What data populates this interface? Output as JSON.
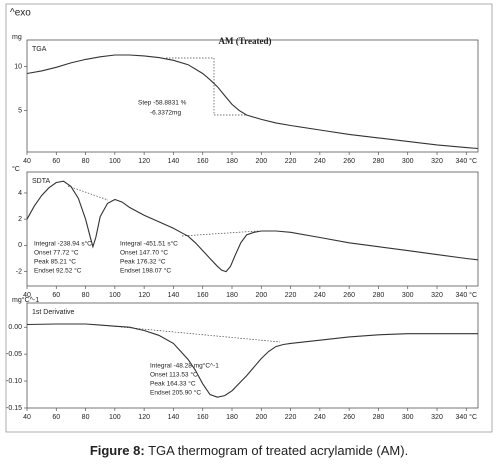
{
  "exo_label": "^exo",
  "caption": {
    "label": "Figure 8:",
    "text": " TGA thermogram of treated acrylamide (AM)."
  },
  "chart_data": [
    {
      "type": "line",
      "title": "AM (Treated)",
      "label": "TGA",
      "ylabel": "mg",
      "color": "#333333",
      "x": [
        40,
        50,
        60,
        70,
        80,
        90,
        100,
        110,
        120,
        130,
        140,
        150,
        160,
        165,
        170,
        175,
        180,
        185,
        190,
        200,
        210,
        220,
        240,
        260,
        280,
        300,
        320,
        340,
        348
      ],
      "values": [
        9.2,
        9.5,
        9.9,
        10.4,
        10.8,
        11.1,
        11.3,
        11.3,
        11.2,
        11.0,
        10.7,
        10.2,
        9.2,
        8.5,
        7.7,
        6.7,
        5.7,
        5.0,
        4.5,
        4.0,
        3.6,
        3.3,
        2.8,
        2.3,
        1.9,
        1.5,
        1.1,
        0.8,
        0.7
      ],
      "xlim": [
        40,
        348
      ],
      "ylim": [
        0.3,
        13
      ],
      "xticks": [
        40,
        60,
        80,
        100,
        120,
        140,
        160,
        180,
        200,
        220,
        240,
        260,
        280,
        300,
        320,
        {
          "value": 340,
          "label": "340 °C"
        }
      ],
      "yticks": [
        5,
        10
      ],
      "annotations": [
        "Step -58.8831 %",
        "-6.3372mg"
      ]
    },
    {
      "type": "line",
      "label": "SDTA",
      "ylabel": "°C",
      "color": "#333333",
      "x": [
        40,
        45,
        50,
        55,
        60,
        65,
        70,
        75,
        80,
        83,
        85,
        87,
        90,
        95,
        100,
        105,
        110,
        120,
        130,
        140,
        145,
        150,
        155,
        160,
        165,
        170,
        173,
        176,
        179,
        182,
        186,
        190,
        195,
        200,
        210,
        220,
        240,
        260,
        280,
        300,
        320,
        340,
        348
      ],
      "values": [
        2.0,
        3.0,
        3.8,
        4.4,
        4.8,
        4.9,
        4.5,
        3.6,
        2.0,
        0.7,
        -0.1,
        0.6,
        2.2,
        3.2,
        3.5,
        3.3,
        2.9,
        2.3,
        1.8,
        1.3,
        1.0,
        0.7,
        0.2,
        -0.4,
        -1.0,
        -1.6,
        -1.9,
        -2.0,
        -1.6,
        -0.8,
        0.2,
        0.8,
        1.0,
        1.1,
        1.1,
        1.0,
        0.6,
        0.2,
        -0.1,
        -0.4,
        -0.7,
        -1.0,
        -1.1
      ],
      "xlim": [
        40,
        348
      ],
      "ylim": [
        -3.1,
        5.6
      ],
      "xticks": [
        40,
        60,
        80,
        100,
        120,
        140,
        160,
        180,
        200,
        220,
        240,
        260,
        280,
        300,
        320,
        {
          "value": 340,
          "label": "340 °C"
        }
      ],
      "yticks": [
        -2,
        0,
        2,
        4
      ],
      "annotations": [
        "Integral -238.94 s°C",
        "Onset 77.72 °C",
        "Peak 85.21 °C",
        "Endset 92.52 °C",
        "Integral -451.51 s°C",
        "Onset 147.70 °C",
        "Peak 176.32 °C",
        "Endset 198.07 °C"
      ]
    },
    {
      "type": "line",
      "label": "1st Derivative",
      "ylabel": "mg°C^-1",
      "color": "#333333",
      "x": [
        40,
        60,
        80,
        90,
        100,
        110,
        120,
        130,
        140,
        150,
        155,
        160,
        165,
        170,
        175,
        180,
        190,
        200,
        205,
        210,
        215,
        220,
        230,
        240,
        260,
        280,
        300,
        320,
        340,
        348
      ],
      "values": [
        0.005,
        0.006,
        0.006,
        0.004,
        0.002,
        0.0,
        -0.006,
        -0.015,
        -0.03,
        -0.06,
        -0.08,
        -0.105,
        -0.125,
        -0.13,
        -0.127,
        -0.118,
        -0.09,
        -0.058,
        -0.045,
        -0.036,
        -0.032,
        -0.03,
        -0.027,
        -0.024,
        -0.018,
        -0.014,
        -0.012,
        -0.012,
        -0.012,
        -0.012
      ],
      "xlim": [
        40,
        348
      ],
      "ylim": [
        -0.15,
        0.045
      ],
      "xticks": [
        40,
        60,
        80,
        100,
        120,
        140,
        160,
        180,
        200,
        220,
        240,
        260,
        280,
        300,
        320,
        {
          "value": 340,
          "label": "340 °C"
        }
      ],
      "yticks": [
        {
          "value": 0,
          "label": "0.00"
        },
        {
          "value": -0.05,
          "label": "-0.05"
        },
        {
          "value": -0.1,
          "label": "-0.10"
        },
        {
          "value": -0.15,
          "label": "-0.15"
        }
      ],
      "annotations": [
        "Integral -48.28 mg°C^-1",
        "Onset 113.53 °C",
        "Peak 164.33 °C",
        "Endset 205.90 °C"
      ]
    }
  ]
}
